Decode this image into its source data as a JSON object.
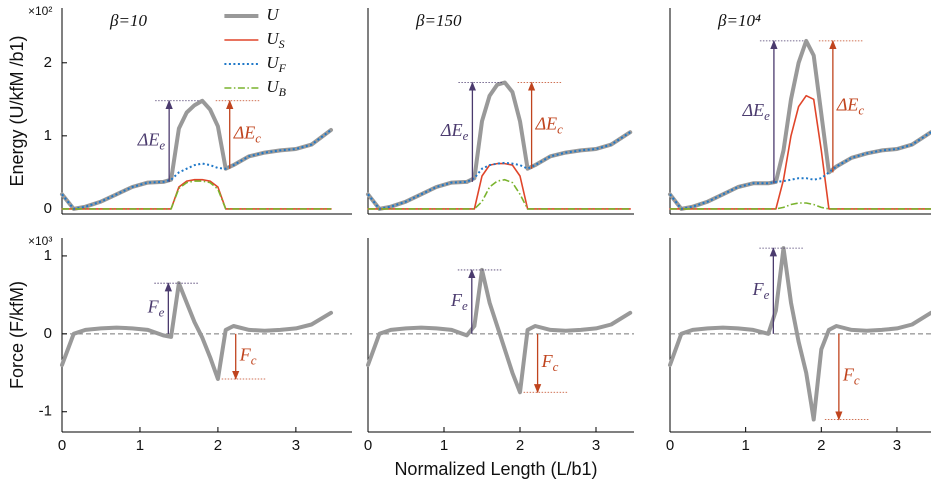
{
  "chart_data": [
    {
      "type": "line",
      "title": "β=10",
      "ylabel": "Energy (U/kfM /b1)",
      "y_multiplier": "×10²",
      "legend": "upper center",
      "x": [
        0,
        0.15,
        0.3,
        0.5,
        0.7,
        0.9,
        1.1,
        1.3,
        1.4,
        1.5,
        1.6,
        1.7,
        1.8,
        1.9,
        2.0,
        2.1,
        2.2,
        2.4,
        2.6,
        2.8,
        3.0,
        3.2,
        3.45
      ],
      "xlim": [
        0,
        3.72
      ],
      "ylim": [
        -0.07,
        2.75
      ],
      "yticks": [
        0,
        1,
        2
      ],
      "series": [
        {
          "name": "U",
          "color": "#999999",
          "width": 4,
          "dash": "solid",
          "values": [
            0.2,
            0,
            0.03,
            0.1,
            0.2,
            0.3,
            0.36,
            0.37,
            0.4,
            1.1,
            1.32,
            1.42,
            1.48,
            1.36,
            1.13,
            0.55,
            0.6,
            0.72,
            0.77,
            0.8,
            0.82,
            0.88,
            1.08
          ]
        },
        {
          "name": "U",
          "subscript": "S",
          "color": "#e0452a",
          "width": 1.6,
          "dash": "solid",
          "values": [
            0,
            0,
            0,
            0,
            0,
            0,
            0,
            0,
            0,
            0.3,
            0.38,
            0.4,
            0.4,
            0.38,
            0.3,
            0,
            0,
            0,
            0,
            0,
            0,
            0,
            0
          ]
        },
        {
          "name": "U",
          "subscript": "F",
          "color": "#1f78c8",
          "width": 2,
          "dash": "dotted",
          "values": [
            0.2,
            0,
            0.03,
            0.1,
            0.2,
            0.3,
            0.36,
            0.37,
            0.4,
            0.5,
            0.55,
            0.6,
            0.62,
            0.6,
            0.56,
            0.55,
            0.6,
            0.72,
            0.77,
            0.8,
            0.82,
            0.88,
            1.08
          ]
        },
        {
          "name": "U",
          "subscript": "B",
          "color": "#7ab32e",
          "width": 1.6,
          "dash": "dashdot",
          "values": [
            0,
            0,
            0,
            0,
            0,
            0,
            0,
            0,
            0,
            0.28,
            0.36,
            0.38,
            0.38,
            0.36,
            0.27,
            0,
            0,
            0,
            0,
            0,
            0,
            0,
            0
          ]
        }
      ],
      "annotations": [
        {
          "text": "ΔE",
          "sub": "e",
          "color": "#4b3b6e"
        },
        {
          "text": "ΔE",
          "sub": "c",
          "color": "#c0441e"
        }
      ]
    },
    {
      "type": "line",
      "title": "β=150",
      "x": [
        0,
        0.15,
        0.3,
        0.5,
        0.7,
        0.9,
        1.1,
        1.3,
        1.4,
        1.5,
        1.6,
        1.7,
        1.8,
        1.9,
        2.0,
        2.1,
        2.2,
        2.4,
        2.6,
        2.8,
        3.0,
        3.2,
        3.45
      ],
      "xlim": [
        0,
        3.5
      ],
      "ylim": [
        -0.07,
        2.75
      ],
      "series": [
        {
          "color": "#999999",
          "width": 4,
          "dash": "solid",
          "values": [
            0.2,
            0,
            0.03,
            0.1,
            0.2,
            0.3,
            0.36,
            0.37,
            0.42,
            1.2,
            1.55,
            1.7,
            1.73,
            1.6,
            1.2,
            0.55,
            0.6,
            0.72,
            0.77,
            0.8,
            0.82,
            0.88,
            1.05
          ]
        },
        {
          "color": "#e0452a",
          "width": 1.6,
          "dash": "solid",
          "values": [
            0,
            0,
            0,
            0,
            0,
            0,
            0,
            0,
            0,
            0.45,
            0.6,
            0.62,
            0.62,
            0.6,
            0.45,
            0,
            0,
            0,
            0,
            0,
            0,
            0,
            0
          ]
        },
        {
          "color": "#1f78c8",
          "width": 2,
          "dash": "dotted",
          "values": [
            0.2,
            0,
            0.03,
            0.1,
            0.2,
            0.3,
            0.36,
            0.37,
            0.42,
            0.55,
            0.6,
            0.62,
            0.63,
            0.62,
            0.6,
            0.55,
            0.6,
            0.72,
            0.77,
            0.8,
            0.82,
            0.88,
            1.05
          ]
        },
        {
          "color": "#7ab32e",
          "width": 1.6,
          "dash": "dashdot",
          "values": [
            0,
            0,
            0,
            0,
            0,
            0,
            0,
            0,
            0,
            0.1,
            0.3,
            0.38,
            0.4,
            0.36,
            0.2,
            0,
            0,
            0,
            0,
            0,
            0,
            0,
            0
          ]
        }
      ],
      "annotations": [
        {
          "text": "ΔE",
          "sub": "e",
          "color": "#4b3b6e"
        },
        {
          "text": "ΔE",
          "sub": "c",
          "color": "#c0441e"
        }
      ]
    },
    {
      "type": "line",
      "title": "β=10⁴",
      "x": [
        0,
        0.15,
        0.3,
        0.5,
        0.7,
        0.9,
        1.1,
        1.3,
        1.4,
        1.5,
        1.6,
        1.7,
        1.8,
        1.9,
        2.0,
        2.1,
        2.2,
        2.4,
        2.6,
        2.8,
        3.0,
        3.2,
        3.45
      ],
      "xlim": [
        0,
        3.45
      ],
      "ylim": [
        -0.07,
        2.75
      ],
      "series": [
        {
          "color": "#999999",
          "width": 4,
          "dash": "solid",
          "values": [
            0.2,
            0,
            0.03,
            0.1,
            0.2,
            0.3,
            0.35,
            0.35,
            0.37,
            0.8,
            1.5,
            2.0,
            2.3,
            2.1,
            1.3,
            0.5,
            0.58,
            0.7,
            0.76,
            0.8,
            0.82,
            0.88,
            1.05
          ]
        },
        {
          "color": "#e0452a",
          "width": 1.6,
          "dash": "solid",
          "values": [
            0,
            0,
            0,
            0,
            0,
            0,
            0,
            0,
            0,
            0.4,
            1.0,
            1.4,
            1.55,
            1.5,
            0.8,
            0,
            0,
            0,
            0,
            0,
            0,
            0,
            0
          ]
        },
        {
          "color": "#1f78c8",
          "width": 2,
          "dash": "dotted",
          "values": [
            0.2,
            0,
            0.03,
            0.1,
            0.2,
            0.3,
            0.35,
            0.35,
            0.37,
            0.38,
            0.4,
            0.42,
            0.42,
            0.4,
            0.42,
            0.5,
            0.58,
            0.7,
            0.76,
            0.8,
            0.82,
            0.88,
            1.05
          ]
        },
        {
          "color": "#7ab32e",
          "width": 1.6,
          "dash": "dashdot",
          "values": [
            0,
            0,
            0,
            0,
            0,
            0,
            0,
            0,
            0,
            0.02,
            0.06,
            0.08,
            0.08,
            0.06,
            0.02,
            0,
            0,
            0,
            0,
            0,
            0,
            0,
            0
          ]
        }
      ],
      "annotations": [
        {
          "text": "ΔE",
          "sub": "e",
          "color": "#4b3b6e"
        },
        {
          "text": "ΔE",
          "sub": "c",
          "color": "#c0441e"
        }
      ]
    },
    {
      "type": "line",
      "ylabel": "Force (F/kfM)",
      "y_multiplier": "×10³",
      "zero_line": true,
      "x": [
        0,
        0.15,
        0.3,
        0.5,
        0.7,
        0.9,
        1.1,
        1.3,
        1.4,
        1.5,
        1.6,
        1.7,
        1.8,
        1.9,
        2.0,
        2.1,
        2.2,
        2.4,
        2.6,
        2.8,
        3.0,
        3.2,
        3.45
      ],
      "xlim": [
        0,
        3.72
      ],
      "ylim": [
        -1.26,
        1.23
      ],
      "xticks": [
        0,
        1,
        2,
        3
      ],
      "yticks": [
        -1,
        0,
        1
      ],
      "series": [
        {
          "color": "#999999",
          "width": 4,
          "dash": "solid",
          "values": [
            -0.4,
            0,
            0.05,
            0.07,
            0.08,
            0.07,
            0.05,
            -0.02,
            -0.04,
            0.65,
            0.4,
            0.15,
            -0.05,
            -0.3,
            -0.58,
            0.05,
            0.1,
            0.05,
            0.04,
            0.05,
            0.07,
            0.12,
            0.27
          ]
        }
      ],
      "annotations": [
        {
          "text": "F",
          "sub": "e",
          "color": "#4b3b6e"
        },
        {
          "text": "F",
          "sub": "c",
          "color": "#c0441e"
        }
      ]
    },
    {
      "type": "line",
      "xlabel": "Normalized Length (L/b1)",
      "zero_line": true,
      "x": [
        0,
        0.15,
        0.3,
        0.5,
        0.7,
        0.9,
        1.1,
        1.3,
        1.4,
        1.5,
        1.6,
        1.7,
        1.8,
        1.9,
        2.0,
        2.1,
        2.2,
        2.4,
        2.6,
        2.8,
        3.0,
        3.2,
        3.45
      ],
      "xlim": [
        0,
        3.5
      ],
      "ylim": [
        -1.26,
        1.23
      ],
      "xticks": [
        0,
        1,
        2,
        3
      ],
      "series": [
        {
          "color": "#999999",
          "width": 4,
          "dash": "solid",
          "values": [
            -0.4,
            0,
            0.05,
            0.07,
            0.08,
            0.07,
            0.05,
            -0.02,
            0.1,
            0.82,
            0.4,
            0.1,
            -0.2,
            -0.5,
            -0.75,
            0.05,
            0.1,
            0.05,
            0.04,
            0.05,
            0.07,
            0.12,
            0.27
          ]
        }
      ],
      "annotations": [
        {
          "text": "F",
          "sub": "e",
          "color": "#4b3b6e"
        },
        {
          "text": "F",
          "sub": "c",
          "color": "#c0441e"
        }
      ]
    },
    {
      "type": "line",
      "zero_line": true,
      "x": [
        0,
        0.15,
        0.3,
        0.5,
        0.7,
        0.9,
        1.1,
        1.3,
        1.4,
        1.5,
        1.6,
        1.7,
        1.8,
        1.9,
        2.0,
        2.1,
        2.2,
        2.4,
        2.6,
        2.8,
        3.0,
        3.2,
        3.45
      ],
      "xlim": [
        0,
        3.45
      ],
      "ylim": [
        -1.26,
        1.23
      ],
      "xticks": [
        0,
        1,
        2,
        3
      ],
      "series": [
        {
          "color": "#999999",
          "width": 4,
          "dash": "solid",
          "values": [
            -0.4,
            0,
            0.05,
            0.07,
            0.08,
            0.07,
            0.05,
            0,
            0.3,
            1.1,
            0.4,
            -0.1,
            -0.5,
            -1.1,
            -0.2,
            0.05,
            0.1,
            0.05,
            0.04,
            0.05,
            0.07,
            0.12,
            0.27
          ]
        }
      ],
      "annotations": [
        {
          "text": "F",
          "sub": "e",
          "color": "#4b3b6e"
        },
        {
          "text": "F",
          "sub": "c",
          "color": "#c0441e"
        }
      ]
    }
  ]
}
